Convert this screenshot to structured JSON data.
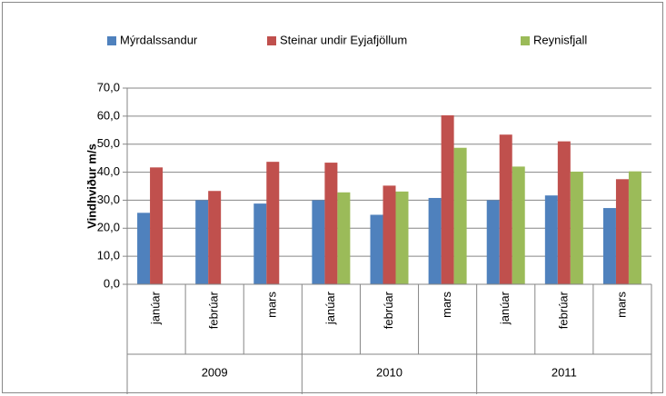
{
  "chart_data": {
    "type": "bar",
    "y_label": "Vindhviður m/s",
    "categories": [
      "janúar",
      "febrúar",
      "mars",
      "janúar",
      "febrúar",
      "mars",
      "janúar",
      "febrúar",
      "mars"
    ],
    "category_groups": [
      "2009",
      "2010",
      "2011"
    ],
    "series": [
      {
        "name": "Mýrdalssandur",
        "color": "#4f81bd",
        "values": [
          25.5,
          30.0,
          28.8,
          30.0,
          24.8,
          30.8,
          30.0,
          31.7,
          27.2
        ]
      },
      {
        "name": "Steinar undir Eyjafjöllum",
        "color": "#c0504d",
        "values": [
          41.7,
          33.3,
          43.7,
          43.4,
          35.2,
          60.3,
          53.4,
          51.0,
          37.5
        ]
      },
      {
        "name": "Reynisfjall",
        "color": "#9bbb59",
        "values": [
          null,
          null,
          null,
          32.8,
          33.1,
          48.7,
          42.0,
          40.2,
          40.3
        ]
      }
    ],
    "ylim": [
      0,
      70
    ],
    "yticks": [
      {
        "value": 0,
        "label": "0,0"
      },
      {
        "value": 10,
        "label": "10,0"
      },
      {
        "value": 20,
        "label": "20,0"
      },
      {
        "value": 30,
        "label": "30,0"
      },
      {
        "value": 40,
        "label": "40,0"
      },
      {
        "value": 50,
        "label": "50,0"
      },
      {
        "value": 60,
        "label": "60,0"
      },
      {
        "value": 70,
        "label": "70,0"
      }
    ],
    "grid": true,
    "legend": "top"
  }
}
